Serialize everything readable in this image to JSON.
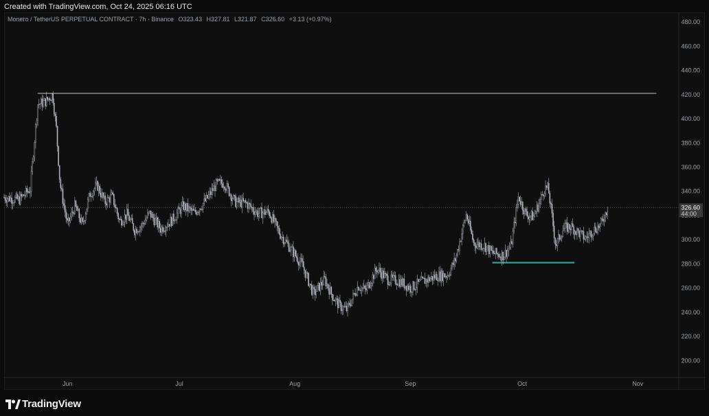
{
  "header": {
    "created_text": "Created with TradingView.com, Oct 24, 2025 06:16 UTC"
  },
  "legend": {
    "symbol": "Monero / TetherUS PERPETUAL CONTRACT · 7h · Binance",
    "open": "O323.43",
    "high": "H327.81",
    "low": "L321.87",
    "close": "C326.60",
    "change": "+3.13 (+0.97%)"
  },
  "footer": {
    "brand": "TradingView"
  },
  "colors": {
    "background": "#0f0f0f",
    "candle": "#b2b5be",
    "level_line": "#c8c8c8",
    "support_line": "#26a69a",
    "price_tag_bg": "#3a3a3a"
  },
  "chart_data": {
    "type": "line",
    "style": "candlestick",
    "title": "Monero / TetherUS PERPETUAL CONTRACT · 7h · Binance",
    "xlabel": "",
    "ylabel": "",
    "ylim": [
      186,
      488
    ],
    "y_ticks": [
      "480.00",
      "460.00",
      "440.00",
      "420.00",
      "400.00",
      "380.00",
      "360.00",
      "340.00",
      "320.00",
      "300.00",
      "280.00",
      "260.00",
      "240.00",
      "220.00",
      "200.00"
    ],
    "x_ticks": [
      "Jun",
      "Jul",
      "Aug",
      "Sep",
      "Oct",
      "Nov"
    ],
    "x_range": [
      "2025-05-15",
      "2025-11-12"
    ],
    "current_price": {
      "value": 326.6,
      "label": "326.60",
      "countdown": "44:00"
    },
    "series": [
      {
        "x": [
          "2025-05-15",
          "2025-05-19",
          "2025-05-22",
          "2025-05-24",
          "2025-05-26",
          "2025-05-28",
          "2025-05-29",
          "2025-05-30",
          "2025-06-01",
          "2025-06-03",
          "2025-06-05",
          "2025-06-07",
          "2025-06-09",
          "2025-06-11",
          "2025-06-13",
          "2025-06-15",
          "2025-06-17",
          "2025-06-19",
          "2025-06-21",
          "2025-06-23",
          "2025-06-26",
          "2025-06-29",
          "2025-07-02",
          "2025-07-05",
          "2025-07-08",
          "2025-07-11",
          "2025-07-13",
          "2025-07-16",
          "2025-07-19",
          "2025-07-22",
          "2025-07-25",
          "2025-07-28",
          "2025-07-31",
          "2025-08-03",
          "2025-08-06",
          "2025-08-09",
          "2025-08-11",
          "2025-08-13",
          "2025-08-15",
          "2025-08-18",
          "2025-08-20",
          "2025-08-23",
          "2025-08-26",
          "2025-08-29",
          "2025-09-01",
          "2025-09-04",
          "2025-09-08",
          "2025-09-11",
          "2025-09-13",
          "2025-09-16",
          "2025-09-18",
          "2025-09-21",
          "2025-09-23",
          "2025-09-26",
          "2025-09-28",
          "2025-09-30",
          "2025-10-02",
          "2025-10-04",
          "2025-10-06",
          "2025-10-07",
          "2025-10-08",
          "2025-10-10",
          "2025-10-12",
          "2025-10-14",
          "2025-10-16",
          "2025-10-18",
          "2025-10-20",
          "2025-10-22",
          "2025-10-24"
        ],
        "values": [
          335,
          333,
          342,
          412,
          414,
          420,
          392,
          346,
          312,
          328,
          312,
          338,
          345,
          331,
          336,
          315,
          321,
          308,
          312,
          322,
          309,
          316,
          328,
          322,
          332,
          346,
          347,
          331,
          330,
          322,
          323,
          305,
          292,
          279,
          255,
          267,
          254,
          245,
          242,
          262,
          258,
          276,
          267,
          266,
          260,
          265,
          270,
          271,
          283,
          321,
          297,
          295,
          289,
          287,
          295,
          336,
          321,
          319,
          334,
          343,
          342,
          295,
          309,
          311,
          306,
          301,
          308,
          312,
          327
        ]
      }
    ],
    "annotations": [
      {
        "type": "horizontal-level",
        "price": 421,
        "from": "2025-05-24",
        "to": "2025-11-06",
        "color": "#c8c8c8"
      },
      {
        "type": "horizontal-level",
        "price": 281,
        "from": "2025-09-23",
        "to": "2025-10-15",
        "color": "#26a69a"
      }
    ],
    "grid": false,
    "legend": "top-left"
  }
}
